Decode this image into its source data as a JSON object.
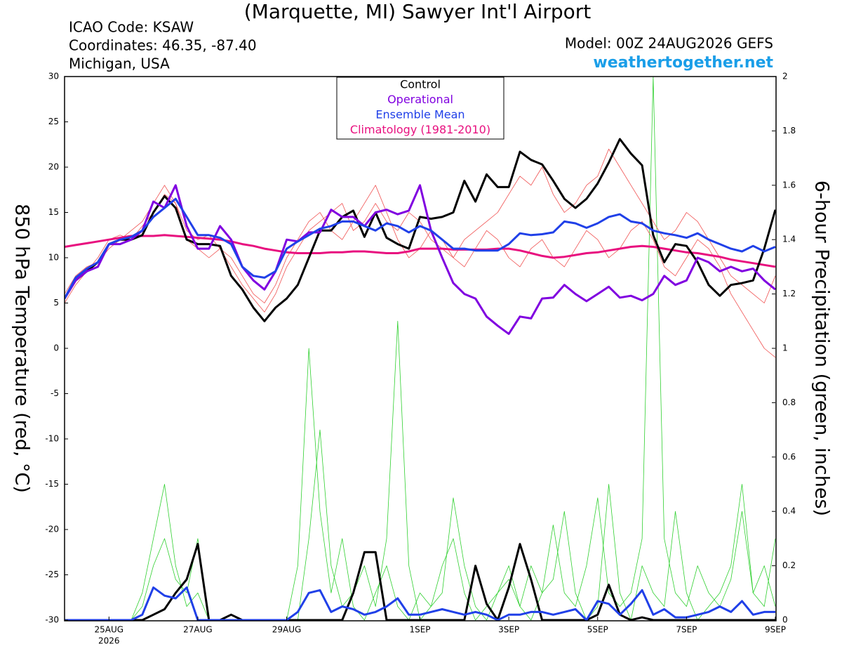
{
  "chart_data": {
    "type": "line",
    "title": "(Marquette, MI) Sawyer Int'l Airport",
    "icao": "ICAO Code: KSAW",
    "coordinates": "Coordinates: 46.35, -87.40",
    "location": "Michigan, USA",
    "model": "Model: 00Z 24AUG2026 GEFS",
    "site": "weathertogether.net",
    "y_label": "850 hPa Temperature (red, °C)",
    "y2_label": "6-hour Precipitation (green, inches)",
    "x_year_label": "2026",
    "categories": [
      null,
      null,
      null,
      null,
      "25AUG",
      null,
      null,
      null,
      null,
      null,
      null,
      null,
      "27AUG",
      null,
      null,
      null,
      null,
      null,
      null,
      null,
      "29AUG",
      null,
      null,
      null,
      null,
      null,
      null,
      null,
      null,
      null,
      null,
      null,
      "1SEP",
      null,
      null,
      null,
      null,
      null,
      null,
      null,
      "3SEP",
      null,
      null,
      null,
      null,
      null,
      null,
      null,
      "5SEP",
      null,
      null,
      null,
      null,
      null,
      null,
      null,
      "7SEP",
      null,
      null,
      null,
      null,
      null,
      null,
      null,
      "9SEP"
    ],
    "ylim": [
      -30,
      30
    ],
    "yticks": [
      -30,
      -25,
      -20,
      -15,
      -10,
      -5,
      0,
      5,
      10,
      15,
      20,
      25,
      30
    ],
    "y2lim": [
      0,
      2
    ],
    "y2ticks": [
      0,
      0.2,
      0.4,
      0.6,
      0.8,
      1,
      1.2,
      1.4,
      1.6,
      1.8,
      2
    ],
    "series": [
      {
        "name": "Control",
        "color": "#000000",
        "values": [
          5.5,
          7.5,
          8.5,
          9.5,
          11.5,
          12,
          12,
          12.5,
          15,
          16.8,
          15.5,
          12,
          11.5,
          11.5,
          11.3,
          8,
          6.5,
          4.5,
          3,
          4.5,
          5.5,
          7,
          10,
          13,
          13,
          14.5,
          15.2,
          12.3,
          15,
          12.2,
          11.5,
          11,
          14.5,
          14.3,
          14.5,
          15,
          18.5,
          16.2,
          19.2,
          17.8,
          17.8,
          21.7,
          20.8,
          20.3,
          18.5,
          16.5,
          15.5,
          16.5,
          18.2,
          20.5,
          23.1,
          21.5,
          20.2,
          12.5,
          9.5,
          11.5,
          11.3,
          9.5,
          7,
          5.8,
          7,
          7.2,
          7.5,
          11,
          15.3
        ],
        "precip": [
          0,
          0,
          0,
          0,
          0,
          0,
          0,
          0,
          0.02,
          0.04,
          0.1,
          0.15,
          0.28,
          0,
          0,
          0.02,
          0,
          0,
          0,
          0,
          0,
          0,
          0,
          0,
          0,
          0,
          0.1,
          0.25,
          0.25,
          0,
          0,
          0,
          0,
          0,
          0,
          0,
          0,
          0.2,
          0.06,
          0,
          0.12,
          0.28,
          0.15,
          0,
          0,
          0,
          0,
          0,
          0.02,
          0.13,
          0.02,
          0,
          0.01,
          0,
          0,
          0,
          0,
          0,
          0,
          0,
          0,
          0,
          0,
          0,
          0
        ]
      },
      {
        "name": "Operational",
        "color": "#8000e0",
        "values": [
          5.5,
          7.5,
          8.5,
          9,
          11.5,
          11.5,
          12,
          13,
          16.2,
          15.5,
          18,
          13.5,
          11,
          11,
          13.5,
          12,
          9,
          7.5,
          6.5,
          8.5,
          12,
          11.8,
          12.8,
          12.8,
          15.3,
          14.5,
          14.5,
          13.5,
          15,
          15.3,
          14.8,
          15.2,
          18,
          13,
          10,
          7.2,
          6,
          5.5,
          3.5,
          2.5,
          1.6,
          3.5,
          3.3,
          5.5,
          5.6,
          7,
          6,
          5.2,
          6,
          6.8,
          5.6,
          5.8,
          5.3,
          6,
          8,
          7,
          7.5,
          10,
          9.5,
          8.5,
          9,
          8.5,
          8.8,
          7.5,
          6.5
        ]
      },
      {
        "name": "Ensemble Mean",
        "color": "#2040e8",
        "values": [
          5.5,
          7.8,
          8.8,
          9.5,
          11.5,
          12,
          12.3,
          13,
          14.5,
          15.5,
          16.5,
          14.5,
          12.5,
          12.5,
          12.2,
          11.5,
          9,
          8,
          7.8,
          8.5,
          11,
          11.8,
          12.5,
          13.2,
          13.5,
          14,
          14,
          13.5,
          13,
          13.8,
          13.5,
          12.8,
          13.5,
          13,
          12,
          11,
          11,
          10.8,
          10.8,
          10.8,
          11.5,
          12.7,
          12.5,
          12.6,
          12.8,
          14,
          13.8,
          13.3,
          13.8,
          14.5,
          14.8,
          14,
          13.8,
          13,
          12.7,
          12.5,
          12.2,
          12.7,
          12,
          11.5,
          11,
          10.7,
          11.3,
          10.7,
          11.2
        ],
        "precip": [
          0,
          0,
          0,
          0,
          0,
          0,
          0,
          0.02,
          0.12,
          0.09,
          0.08,
          0.12,
          0,
          0,
          0,
          0,
          0,
          0,
          0,
          0,
          0,
          0.03,
          0.1,
          0.11,
          0.03,
          0.05,
          0.04,
          0.02,
          0.03,
          0.05,
          0.08,
          0.02,
          0.02,
          0.03,
          0.04,
          0.03,
          0.02,
          0.03,
          0.02,
          0,
          0.02,
          0.02,
          0.03,
          0.03,
          0.02,
          0.03,
          0.04,
          0,
          0.07,
          0.06,
          0.02,
          0.06,
          0.11,
          0.02,
          0.04,
          0.01,
          0.01,
          0.02,
          0.03,
          0.05,
          0.03,
          0.07,
          0.02,
          0.03,
          0.03
        ]
      },
      {
        "name": "Climatology (1981-2010)",
        "color": "#e8107f",
        "values": [
          11.2,
          11.4,
          11.6,
          11.8,
          12,
          12.2,
          12.4,
          12.4,
          12.4,
          12.5,
          12.4,
          12.3,
          12.2,
          12.1,
          12,
          11.8,
          11.5,
          11.3,
          11,
          10.8,
          10.6,
          10.5,
          10.5,
          10.5,
          10.6,
          10.6,
          10.7,
          10.7,
          10.6,
          10.5,
          10.5,
          10.7,
          11,
          11,
          11,
          10.9,
          10.9,
          10.9,
          10.9,
          11,
          11,
          10.8,
          10.5,
          10.2,
          10,
          10.1,
          10.3,
          10.5,
          10.6,
          10.8,
          11,
          11.2,
          11.3,
          11.2,
          11,
          10.8,
          10.6,
          10.5,
          10.3,
          10.1,
          9.8,
          9.6,
          9.4,
          9.2,
          9
        ]
      }
    ],
    "member_color": "#f05050",
    "members": [
      {
        "values": [
          5,
          7,
          8.5,
          10,
          12,
          12.5,
          12,
          13.5,
          15,
          17,
          16,
          13,
          12,
          12.5,
          11,
          9,
          7,
          5.5,
          4,
          6,
          9,
          11,
          13,
          14,
          15,
          16,
          13,
          14,
          16,
          14,
          13,
          15,
          14,
          12,
          11,
          10,
          12,
          13,
          14,
          15,
          17,
          19,
          18,
          20,
          17,
          15,
          16,
          18,
          19,
          22,
          20,
          18,
          16,
          14,
          12,
          13,
          15,
          14,
          12,
          10,
          8,
          7,
          6,
          5,
          8
        ]
      },
      {
        "values": [
          6,
          8,
          9,
          9.5,
          11,
          12,
          13,
          14,
          16,
          18,
          16,
          12,
          11,
          10,
          11,
          10,
          8,
          6,
          5,
          7,
          10,
          12,
          14,
          15,
          13,
          12,
          14,
          16,
          18,
          15,
          12,
          10,
          11,
          13,
          12,
          10,
          9,
          11,
          13,
          12,
          10,
          9,
          11,
          12,
          10,
          9,
          11,
          13,
          12,
          10,
          11,
          13,
          14,
          12,
          9,
          8,
          10,
          12,
          11,
          9,
          6,
          4,
          2,
          0,
          -1
        ]
      }
    ],
    "precip_member_color": "#30d030",
    "precip_members": [
      {
        "values": [
          0,
          0,
          0,
          0,
          0,
          0,
          0,
          0.1,
          0.3,
          0.5,
          0.2,
          0.05,
          0.1,
          0,
          0,
          0,
          0,
          0,
          0,
          0,
          0,
          0.2,
          1.0,
          0.4,
          0.1,
          0.3,
          0.05,
          0,
          0.1,
          0.2,
          0.05,
          0,
          0.1,
          0.05,
          0.2,
          0.3,
          0.1,
          0,
          0.05,
          0.1,
          0.2,
          0.05,
          0,
          0.1,
          0.15,
          0.4,
          0.1,
          0,
          0.05,
          0.5,
          0.1,
          0,
          0.2,
          0.1,
          0.05,
          0.4,
          0.1,
          0,
          0.05,
          0.1,
          0.2,
          0.5,
          0.1,
          0.05,
          0.3
        ]
      },
      {
        "values": [
          0,
          0,
          0,
          0,
          0,
          0,
          0,
          0.05,
          0.2,
          0.3,
          0.15,
          0.1,
          0.3,
          0,
          0,
          0,
          0,
          0,
          0,
          0,
          0,
          0,
          0.3,
          0.7,
          0.2,
          0.05,
          0.1,
          0.2,
          0.05,
          0.3,
          1.1,
          0.2,
          0,
          0.05,
          0.1,
          0.45,
          0.2,
          0.05,
          0,
          0.1,
          0.15,
          0.05,
          0.2,
          0.1,
          0.35,
          0.1,
          0.05,
          0.2,
          0.45,
          0.1,
          0.05,
          0.1,
          0.3,
          2.0,
          0.3,
          0.1,
          0.05,
          0.2,
          0.1,
          0.05,
          0.15,
          0.4,
          0.1,
          0.2,
          0.05
        ]
      }
    ]
  }
}
